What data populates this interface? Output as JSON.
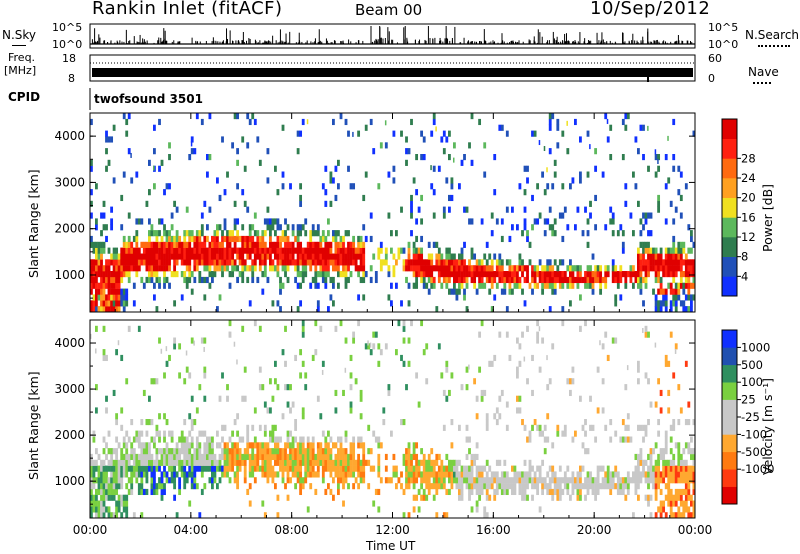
{
  "header": {
    "title_left": "Rankin Inlet (fitACF)",
    "title_mid": "Beam 00",
    "title_right": "10/Sep/2012"
  },
  "strips": {
    "nsky_label": "N.Sky",
    "nsky_ticks": [
      "10^5",
      "10^0"
    ],
    "nsearch_label": "N.Search",
    "nsearch_ticks": [
      "10^5",
      "10^0"
    ],
    "freq_label_1": "Freq.",
    "freq_label_2": "[MHz]",
    "freq_ticks": [
      "18",
      "8"
    ],
    "nave_label": "Nave",
    "nave_ticks": [
      "60",
      "0"
    ],
    "cpid_label": "CPID",
    "cpid_value": "twofsound 3501"
  },
  "colors": {
    "power": [
      "#1030ff",
      "#2050b8",
      "#2f7d4f",
      "#5cb85c",
      "#f0e020",
      "#ffa020",
      "#ff6a10",
      "#ff2010",
      "#e00000"
    ],
    "velocity": [
      "#e00000",
      "#ff3a10",
      "#ff7a10",
      "#ffa830",
      "#c8c8c8",
      "#c8c8c8",
      "#7ad040",
      "#2f8f5f",
      "#2050b0",
      "#1030ff"
    ],
    "gray": "#c8c8c8"
  },
  "chart_data": [
    {
      "type": "heatmap",
      "name": "power",
      "ylabel": "Slant Range [km]",
      "yticks": [
        "1000",
        "2000",
        "3000",
        "4000"
      ],
      "colorbar_label": "Power [dB]",
      "colorbar_ticks": [
        "4",
        "8",
        "12",
        "16",
        "20",
        "24",
        "28"
      ],
      "ylim": [
        200,
        4500
      ]
    },
    {
      "type": "heatmap",
      "name": "velocity",
      "ylabel": "Slant Range [km]",
      "yticks": [
        "1000",
        "2000",
        "3000",
        "4000"
      ],
      "colorbar_label": "Velocity [m s⁻¹]",
      "colorbar_ticks": [
        "1000",
        "500",
        "100",
        "25",
        "-25",
        "-100",
        "-500",
        "-1000"
      ],
      "ylim": [
        200,
        4500
      ]
    }
  ],
  "xaxis": {
    "ticks": [
      "00:00",
      "04:00",
      "08:00",
      "12:00",
      "16:00",
      "20:00",
      "00:00"
    ],
    "label": "Time UT"
  }
}
